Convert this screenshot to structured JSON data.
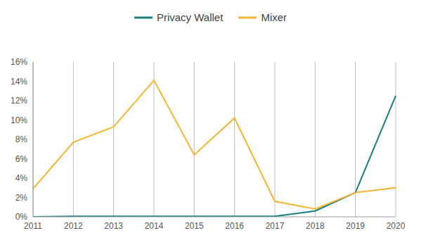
{
  "chart_data": {
    "type": "line",
    "categories": [
      "2011",
      "2012",
      "2013",
      "2014",
      "2015",
      "2016",
      "2017",
      "2018",
      "2019",
      "2020"
    ],
    "series": [
      {
        "name": "Privacy Wallet",
        "color": "#17807c",
        "values": [
          0,
          0.05,
          0.05,
          0.05,
          0.05,
          0.05,
          0.05,
          0.6,
          2.5,
          12.5
        ]
      },
      {
        "name": "Mixer",
        "color": "#f4b533",
        "values": [
          2.9,
          7.7,
          9.3,
          14.1,
          6.4,
          10.2,
          1.6,
          0.8,
          2.5,
          3.0
        ]
      }
    ],
    "ylim": [
      0,
      16
    ],
    "yticks": [
      {
        "value": 0,
        "label": "0%"
      },
      {
        "value": 2,
        "label": "2%"
      },
      {
        "value": 4,
        "label": "4%"
      },
      {
        "value": 6,
        "label": "6%"
      },
      {
        "value": 8,
        "label": "8%"
      },
      {
        "value": 10,
        "label": "10%"
      },
      {
        "value": 12,
        "label": "12%"
      },
      {
        "value": 14,
        "label": "14%"
      },
      {
        "value": 16,
        "label": "16%"
      }
    ],
    "grid": "x",
    "legend": "top"
  }
}
